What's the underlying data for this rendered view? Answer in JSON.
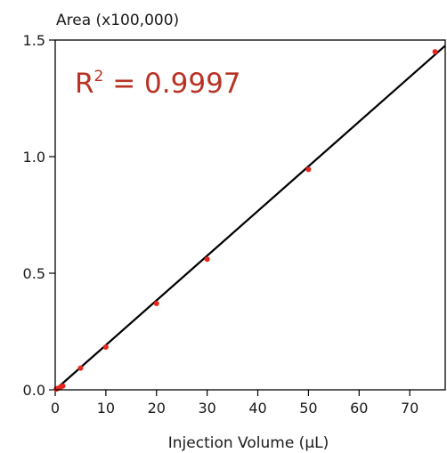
{
  "chart_data": {
    "type": "scatter",
    "ylabel": "Area (x100,000)",
    "xlabel": "Injection Volume (µL)",
    "xlim": [
      0,
      77
    ],
    "ylim": [
      0,
      1.5
    ],
    "x_ticks": [
      "0",
      "10",
      "20",
      "30",
      "40",
      "50",
      "60",
      "70"
    ],
    "y_ticks": [
      "0.0",
      "0.5",
      "1.0",
      "1.5"
    ],
    "grid": false,
    "annotation": {
      "prefix": "R",
      "superscript": "2",
      "suffix": " = 0.9997"
    },
    "series": [
      {
        "points": [
          {
            "x": 0.2,
            "y": 0.003
          },
          {
            "x": 0.5,
            "y": 0.006
          },
          {
            "x": 1.0,
            "y": 0.011
          },
          {
            "x": 1.5,
            "y": 0.016
          },
          {
            "x": 5,
            "y": 0.093
          },
          {
            "x": 10,
            "y": 0.183
          },
          {
            "x": 20,
            "y": 0.37
          },
          {
            "x": 30,
            "y": 0.56
          },
          {
            "x": 50,
            "y": 0.945
          },
          {
            "x": 75,
            "y": 1.45
          }
        ],
        "color": "#e8261c"
      }
    ],
    "fit_line": {
      "x": [
        0,
        77
      ],
      "y": [
        0,
        1.476
      ],
      "color": "#000000"
    }
  }
}
